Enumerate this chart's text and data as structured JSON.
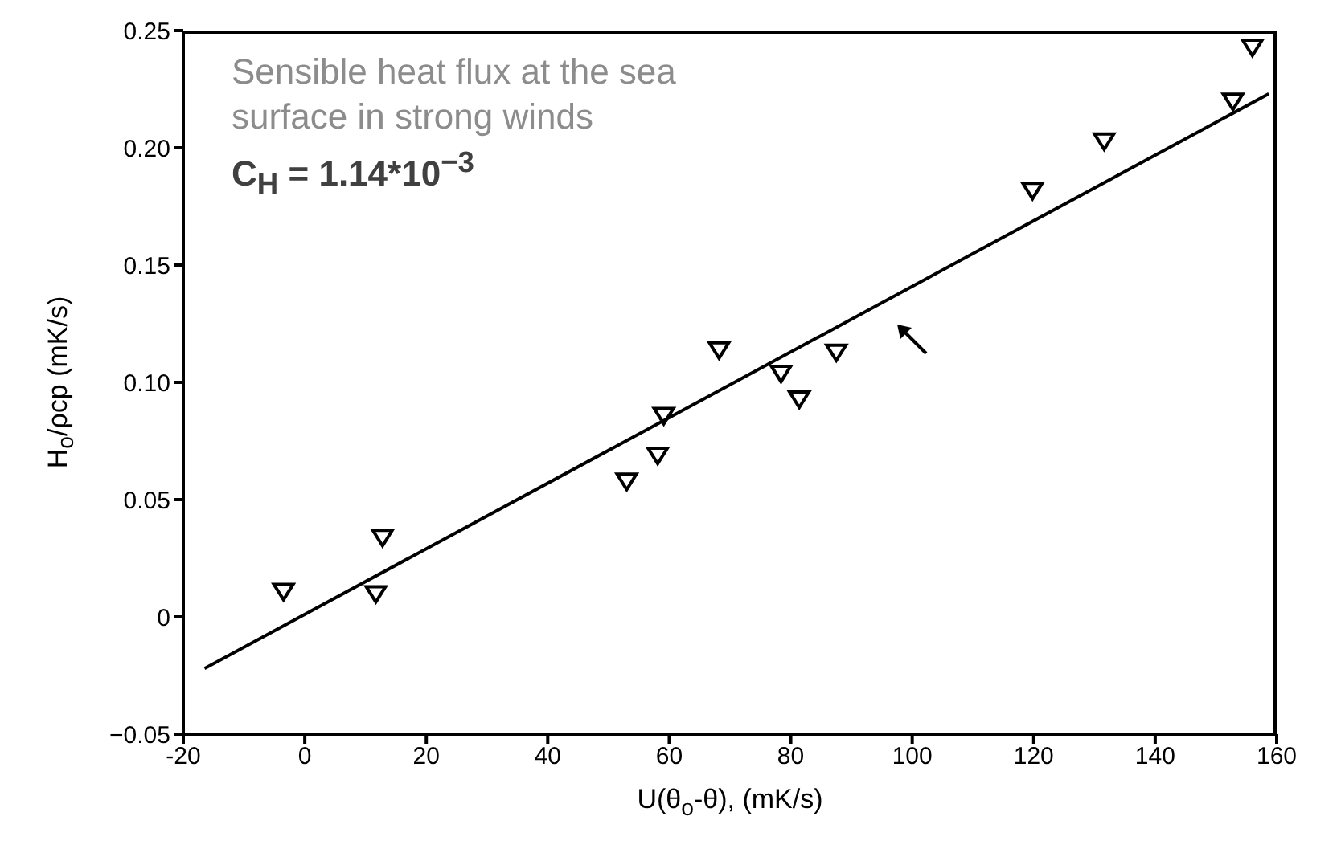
{
  "chart_data": {
    "type": "scatter",
    "title": "Sensible heat flux at the sea surface in strong winds",
    "annotations": [
      "C$_{H}$ = 1.14*10$^{−3}$"
    ],
    "xlabel": "U(θ$_{o}$-θ), (mK/s)",
    "ylabel": "H$_{o}$/ρcp (mK/s)",
    "x": [
      -3.5,
      11.7,
      12.8,
      53.0,
      58.1,
      59.1,
      68.2,
      78.4,
      81.4,
      87.5,
      119.8,
      131.6,
      152.8,
      156
    ],
    "series": [
      {
        "color": "#000000",
        "marker": "triangle",
        "values": [
          0.011,
          0.01,
          0.034,
          0.058,
          0.069,
          0.086,
          0.114,
          0.104,
          0.093,
          0.113,
          0.182,
          0.203,
          0.22,
          0.243
        ]
      },
      {
        "type": "line",
        "color": "#000000",
        "marker": "none",
        "x": [
          -16.5,
          158.7
        ],
        "values": [
          -0.022,
          0.223
        ]
      }
    ],
    "xlim": [
      -20,
      160
    ],
    "xticks": [
      -20,
      0,
      20,
      40,
      60,
      80,
      100,
      120,
      140,
      160
    ],
    "ylim": [
      -0.05,
      0.25
    ],
    "yticks": [
      {
        "value": -0.05,
        "label": "−0.05"
      },
      0,
      0.05,
      {
        "value": 0.1,
        "label": "0.10"
      },
      0.15,
      {
        "value": 0.2,
        "label": "0.20"
      },
      0.25
    ],
    "grid": false
  }
}
